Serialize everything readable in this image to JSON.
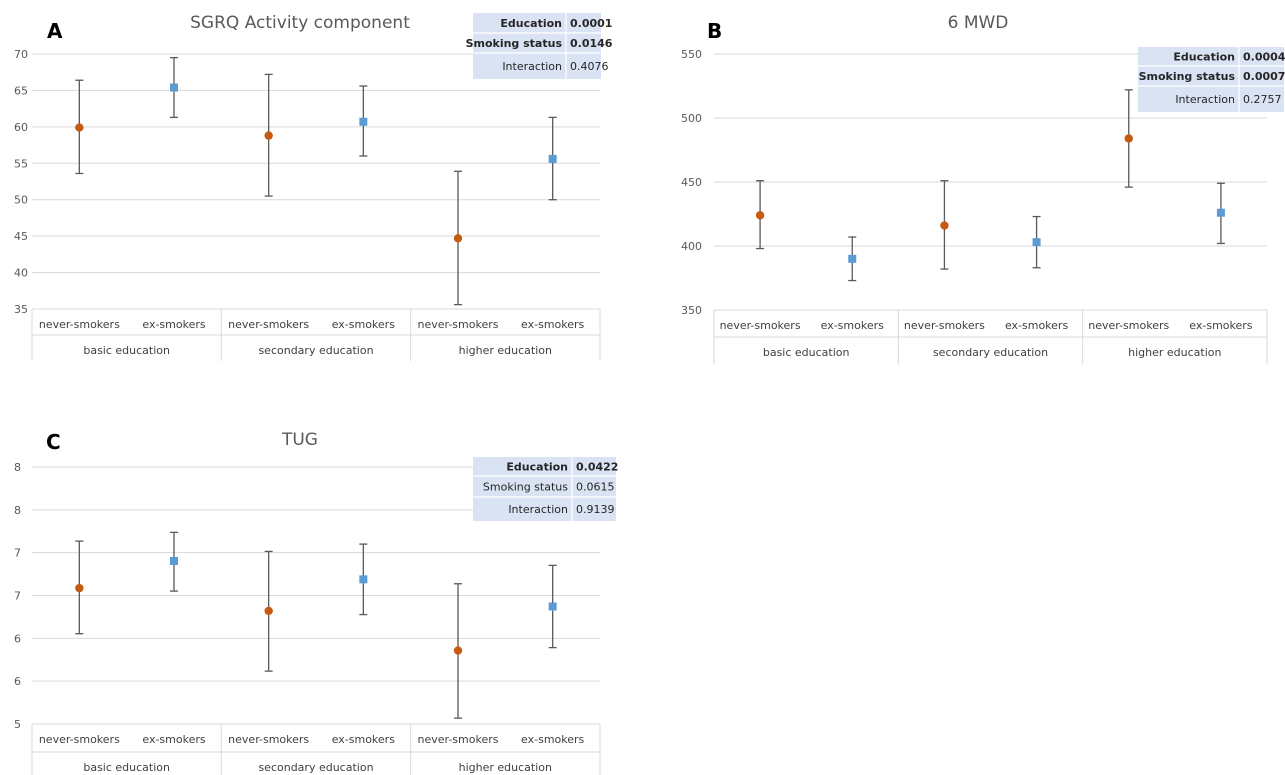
{
  "colors": {
    "never": "#c55a11",
    "ex": "#5b9bd5",
    "grid": "#d9d9d9",
    "whisker": "#595959",
    "tick": "#595959",
    "title": "#595959",
    "pbox": "#dae3f3"
  },
  "chart_data": [
    {
      "panel": "A",
      "type": "scatter",
      "title": "SGRQ Activity component",
      "categories": [
        "never-smokers",
        "ex-smokers",
        "never-smokers",
        "ex-smokers",
        "never-smokers",
        "ex-smokers"
      ],
      "groups": [
        "basic education",
        "secondary education",
        "higher education"
      ],
      "ylim": [
        35,
        70
      ],
      "yticks": [
        "35",
        "40",
        "45",
        "50",
        "55",
        "60",
        "65",
        "70"
      ],
      "values": [
        59.9,
        65.4,
        58.8,
        60.7,
        44.7,
        55.6
      ],
      "error_low": [
        53.6,
        61.3,
        50.5,
        56.0,
        35.6,
        50.0
      ],
      "error_high": [
        66.4,
        69.5,
        67.2,
        65.6,
        53.9,
        61.3
      ],
      "stats": [
        {
          "label": "Education",
          "value": "0.0001",
          "bold": true
        },
        {
          "label": "Smoking status",
          "value": "0.0146",
          "bold": true
        },
        {
          "label": "Interaction",
          "value": "0.4076",
          "bold": false
        }
      ]
    },
    {
      "panel": "B",
      "type": "scatter",
      "title": "6 MWD",
      "categories": [
        "never-smokers",
        "ex-smokers",
        "never-smokers",
        "ex-smokers",
        "never-smokers",
        "ex-smokers"
      ],
      "groups": [
        "basic education",
        "secondary education",
        "higher education"
      ],
      "ylim": [
        350,
        550
      ],
      "yticks": [
        "350",
        "400",
        "450",
        "500",
        "550"
      ],
      "values": [
        424,
        390,
        416,
        403,
        484,
        426
      ],
      "error_low": [
        398,
        373,
        382,
        383,
        446,
        402
      ],
      "error_high": [
        451,
        407,
        451,
        423,
        522,
        449
      ],
      "stats": [
        {
          "label": "Education",
          "value": "0.0004",
          "bold": true
        },
        {
          "label": "Smoking status",
          "value": "0.0007",
          "bold": true
        },
        {
          "label": "Interaction",
          "value": "0.2757",
          "bold": false
        }
      ]
    },
    {
      "panel": "C",
      "type": "scatter",
      "title": "TUG",
      "categories": [
        "never-smokers",
        "ex-smokers",
        "never-smokers",
        "ex-smokers",
        "never-smokers",
        "ex-smokers"
      ],
      "groups": [
        "basic education",
        "secondary education",
        "higher education"
      ],
      "ylim": [
        5,
        8.5
      ],
      "yticks": [
        "5",
        "6",
        "6",
        "7",
        "7",
        "8",
        "8"
      ],
      "values": [
        6.85,
        7.22,
        6.54,
        6.97,
        6.0,
        6.6
      ],
      "error_low": [
        6.23,
        6.81,
        5.72,
        6.49,
        5.08,
        6.04
      ],
      "error_high": [
        7.49,
        7.61,
        7.35,
        7.45,
        6.91,
        7.16
      ],
      "stats": [
        {
          "label": "Education",
          "value": "0.0422",
          "bold": true
        },
        {
          "label": "Smoking status",
          "value": "0.0615",
          "bold": false
        },
        {
          "label": "Interaction",
          "value": "0.9139",
          "bold": false
        }
      ]
    }
  ]
}
